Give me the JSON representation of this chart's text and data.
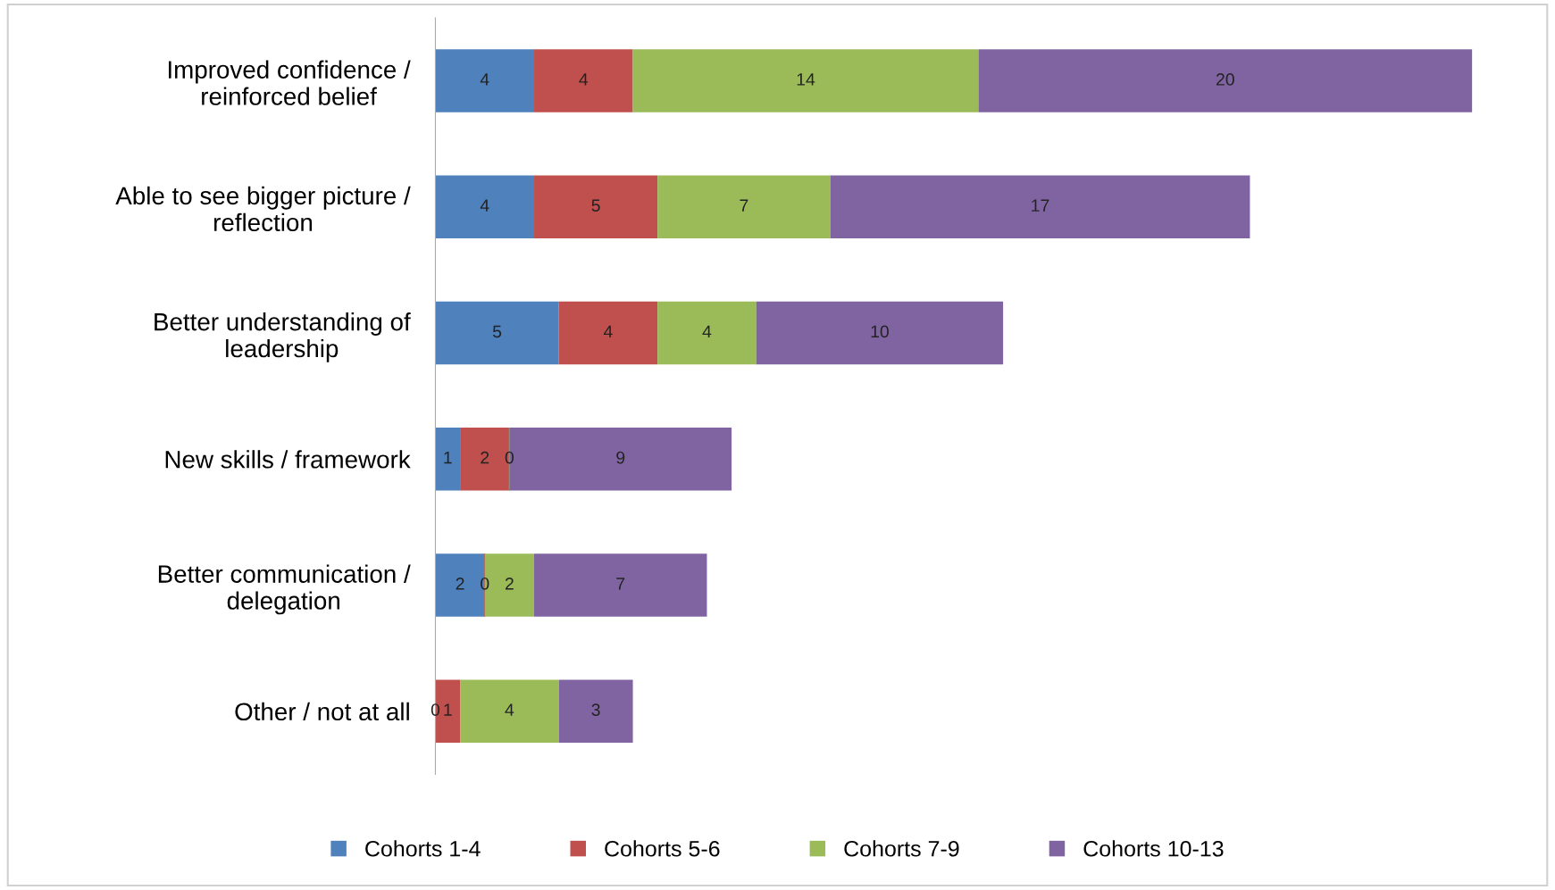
{
  "chart_data": {
    "type": "bar",
    "orientation": "horizontal",
    "stacked": true,
    "legend": "bottom",
    "grid": false,
    "tick_labels": "y",
    "categories": [
      "Improved confidence /\nreinforced belief",
      "Able to see bigger picture /\nreflection",
      "Better understanding of\nleadership",
      "New skills / framework",
      "Better communication /\ndelegation",
      "Other / not at all"
    ],
    "series": [
      {
        "name": "Cohorts 1-4",
        "color": "#4f81bd",
        "values": [
          4,
          4,
          5,
          1,
          2,
          0
        ],
        "value_labels": [
          "4",
          "4",
          "5",
          "1",
          "2",
          "0"
        ]
      },
      {
        "name": "Cohorts 5-6",
        "color": "#c0504d",
        "values": [
          4,
          5,
          4,
          2,
          0,
          1
        ],
        "value_labels": [
          "4",
          "5",
          "4",
          "2",
          "0",
          "1"
        ]
      },
      {
        "name": "Cohorts 7-9",
        "color": "#9bbb59",
        "values": [
          14,
          7,
          4,
          0,
          2,
          4
        ],
        "value_labels": [
          "14",
          "7",
          "4",
          "0",
          "2",
          "4"
        ]
      },
      {
        "name": "Cohorts 10-13",
        "color": "#8064a2",
        "values": [
          20,
          17,
          10,
          9,
          7,
          3
        ],
        "value_labels": [
          "20",
          "17",
          "10",
          "9",
          "7",
          "3"
        ]
      }
    ]
  }
}
